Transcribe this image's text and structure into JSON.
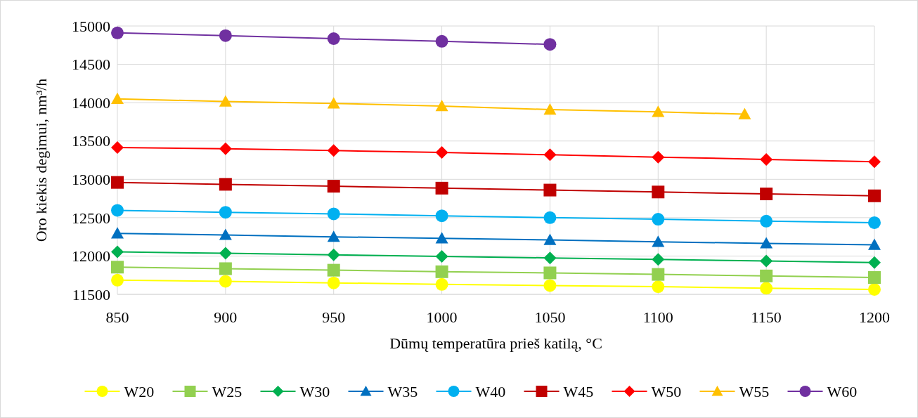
{
  "chart_data": {
    "type": "line",
    "xlabel": "Dūmų temperatūra prieš katilą, °C",
    "ylabel": "Oro kiekis degimui, nm³/h",
    "xlim": [
      850,
      1200
    ],
    "ylim": [
      11500,
      15000
    ],
    "xticks": [
      850,
      900,
      950,
      1000,
      1050,
      1100,
      1150,
      1200
    ],
    "yticks": [
      11500,
      12000,
      12500,
      13000,
      13500,
      14000,
      14500,
      15000
    ],
    "grid": true,
    "legend": "bottom",
    "line_style": "solid",
    "series": [
      {
        "name": "W20",
        "color": "#ffff00",
        "marker": "circle",
        "x": [
          850,
          900,
          950,
          1000,
          1050,
          1100,
          1150,
          1200
        ],
        "values": [
          11685,
          11670,
          11650,
          11630,
          11615,
          11600,
          11580,
          11565
        ]
      },
      {
        "name": "W25",
        "color": "#92d050",
        "marker": "square",
        "x": [
          850,
          900,
          950,
          1000,
          1050,
          1100,
          1150,
          1200
        ],
        "values": [
          11855,
          11835,
          11815,
          11795,
          11780,
          11760,
          11740,
          11720
        ]
      },
      {
        "name": "W30",
        "color": "#00b050",
        "marker": "diamond",
        "x": [
          850,
          900,
          950,
          1000,
          1050,
          1100,
          1150,
          1200
        ],
        "values": [
          12055,
          12035,
          12015,
          11995,
          11975,
          11955,
          11935,
          11915
        ]
      },
      {
        "name": "W35",
        "color": "#0070c0",
        "marker": "triangle",
        "x": [
          850,
          900,
          950,
          1000,
          1050,
          1100,
          1150,
          1200
        ],
        "values": [
          12295,
          12275,
          12250,
          12230,
          12210,
          12185,
          12165,
          12145
        ]
      },
      {
        "name": "W40",
        "color": "#00b0f0",
        "marker": "circle",
        "x": [
          850,
          900,
          950,
          1000,
          1050,
          1100,
          1150,
          1200
        ],
        "values": [
          12595,
          12570,
          12550,
          12525,
          12500,
          12480,
          12455,
          12435
        ]
      },
      {
        "name": "W45",
        "color": "#c00000",
        "marker": "square",
        "x": [
          850,
          900,
          950,
          1000,
          1050,
          1100,
          1150,
          1200
        ],
        "values": [
          12960,
          12935,
          12910,
          12885,
          12860,
          12835,
          12810,
          12785
        ]
      },
      {
        "name": "W50",
        "color": "#ff0000",
        "marker": "diamond",
        "x": [
          850,
          900,
          950,
          1000,
          1050,
          1100,
          1150,
          1200
        ],
        "values": [
          13415,
          13400,
          13375,
          13350,
          13320,
          13290,
          13260,
          13230
        ]
      },
      {
        "name": "W55",
        "color": "#ffc000",
        "marker": "triangle",
        "x": [
          850,
          900,
          950,
          1000,
          1050,
          1100,
          1140
        ],
        "values": [
          14050,
          14015,
          13990,
          13955,
          13910,
          13880,
          13850
        ]
      },
      {
        "name": "W60",
        "color": "#7030a0",
        "marker": "circle",
        "x": [
          850,
          900,
          950,
          1000,
          1050
        ],
        "values": [
          14910,
          14875,
          14835,
          14800,
          14760
        ]
      }
    ]
  }
}
